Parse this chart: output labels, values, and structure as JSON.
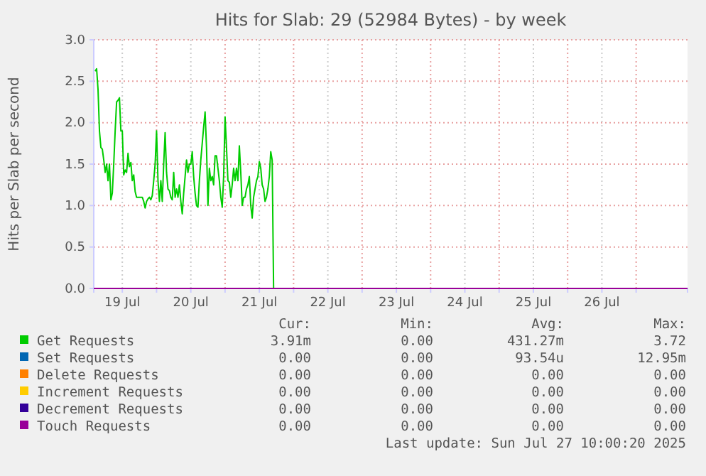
{
  "chart_data": {
    "type": "line",
    "title": "Hits for Slab: 29 (52984 Bytes) - by week",
    "ylabel": "Hits per Slab per second",
    "xlim": [
      "2025-07-19T02:00",
      "2025-07-27T18:00"
    ],
    "xticks": [
      {
        "value": "2025-07-19T12:00",
        "label": "19 Jul"
      },
      {
        "value": "2025-07-20T00:00",
        "label": null
      },
      {
        "value": "2025-07-20T12:00",
        "label": "20 Jul"
      },
      {
        "value": "2025-07-21T00:00",
        "label": null
      },
      {
        "value": "2025-07-21T12:00",
        "label": "21 Jul"
      },
      {
        "value": "2025-07-22T00:00",
        "label": null
      },
      {
        "value": "2025-07-22T12:00",
        "label": "22 Jul"
      },
      {
        "value": "2025-07-23T00:00",
        "label": null
      },
      {
        "value": "2025-07-23T12:00",
        "label": "23 Jul"
      },
      {
        "value": "2025-07-24T00:00",
        "label": null
      },
      {
        "value": "2025-07-24T12:00",
        "label": "24 Jul"
      },
      {
        "value": "2025-07-25T00:00",
        "label": null
      },
      {
        "value": "2025-07-25T12:00",
        "label": "25 Jul"
      },
      {
        "value": "2025-07-26T00:00",
        "label": null
      },
      {
        "value": "2025-07-26T12:00",
        "label": "26 Jul"
      },
      {
        "value": "2025-07-27T00:00",
        "label": null
      }
    ],
    "ylim": [
      0,
      3
    ],
    "yticks": [
      {
        "value": 0,
        "label": "0.0"
      },
      {
        "value": 0.5,
        "label": "0.5"
      },
      {
        "value": 1,
        "label": "1.0"
      },
      {
        "value": 1.5,
        "label": "1.5"
      },
      {
        "value": 2,
        "label": "2.0"
      },
      {
        "value": 2.5,
        "label": "2.5"
      },
      {
        "value": 3,
        "label": "3.0"
      }
    ],
    "grid": true,
    "legend": "bottom",
    "marker": "none",
    "line_style": "solid",
    "series": [
      {
        "name": "Get Requests",
        "color": "#00cc00",
        "x": [
          "2025-07-19T02:30",
          "2025-07-19T03:00",
          "2025-07-19T03:30",
          "2025-07-19T04:00",
          "2025-07-19T04:30",
          "2025-07-19T05:00",
          "2025-07-19T05:30",
          "2025-07-19T06:00",
          "2025-07-19T06:30",
          "2025-07-19T07:00",
          "2025-07-19T07:30",
          "2025-07-19T08:00",
          "2025-07-19T08:30",
          "2025-07-19T09:00",
          "2025-07-19T09:30",
          "2025-07-19T10:00",
          "2025-07-19T10:30",
          "2025-07-19T11:00",
          "2025-07-19T11:30",
          "2025-07-19T12:00",
          "2025-07-19T12:30",
          "2025-07-19T13:00",
          "2025-07-19T13:30",
          "2025-07-19T14:00",
          "2025-07-19T14:30",
          "2025-07-19T15:00",
          "2025-07-19T15:30",
          "2025-07-19T16:00",
          "2025-07-19T16:30",
          "2025-07-19T17:00",
          "2025-07-19T17:30",
          "2025-07-19T18:00",
          "2025-07-19T18:30",
          "2025-07-19T19:00",
          "2025-07-19T19:30",
          "2025-07-19T20:00",
          "2025-07-19T20:30",
          "2025-07-19T21:00",
          "2025-07-19T21:30",
          "2025-07-19T22:00",
          "2025-07-19T22:30",
          "2025-07-19T23:00",
          "2025-07-19T23:30",
          "2025-07-20T00:00",
          "2025-07-20T00:30",
          "2025-07-20T01:00",
          "2025-07-20T01:30",
          "2025-07-20T02:00",
          "2025-07-20T02:30",
          "2025-07-20T03:00",
          "2025-07-20T03:30",
          "2025-07-20T04:00",
          "2025-07-20T04:30",
          "2025-07-20T05:00",
          "2025-07-20T05:30",
          "2025-07-20T06:00",
          "2025-07-20T06:30",
          "2025-07-20T07:00",
          "2025-07-20T07:30",
          "2025-07-20T08:00",
          "2025-07-20T08:30",
          "2025-07-20T09:00",
          "2025-07-20T09:30",
          "2025-07-20T10:00",
          "2025-07-20T10:30",
          "2025-07-20T11:00",
          "2025-07-20T11:30",
          "2025-07-20T12:00",
          "2025-07-20T12:30",
          "2025-07-20T13:00",
          "2025-07-20T13:30",
          "2025-07-20T14:00",
          "2025-07-20T14:30",
          "2025-07-20T15:00",
          "2025-07-20T15:30",
          "2025-07-20T16:00",
          "2025-07-20T16:30",
          "2025-07-20T17:00",
          "2025-07-20T17:30",
          "2025-07-20T18:00",
          "2025-07-20T18:30",
          "2025-07-20T19:00",
          "2025-07-20T19:30",
          "2025-07-20T20:00",
          "2025-07-20T20:30",
          "2025-07-20T21:00",
          "2025-07-20T21:30",
          "2025-07-20T22:00",
          "2025-07-20T22:30",
          "2025-07-20T23:00",
          "2025-07-20T23:30",
          "2025-07-21T00:00",
          "2025-07-21T00:30",
          "2025-07-21T01:00",
          "2025-07-21T01:30",
          "2025-07-21T02:00",
          "2025-07-21T02:30",
          "2025-07-21T03:00",
          "2025-07-21T03:30",
          "2025-07-21T04:00",
          "2025-07-21T04:30",
          "2025-07-21T05:00",
          "2025-07-21T05:30",
          "2025-07-21T06:00",
          "2025-07-21T06:30",
          "2025-07-21T07:00",
          "2025-07-21T07:30",
          "2025-07-21T08:00",
          "2025-07-21T08:30",
          "2025-07-21T09:00",
          "2025-07-21T09:30",
          "2025-07-21T10:00",
          "2025-07-21T10:30",
          "2025-07-21T11:00",
          "2025-07-21T11:30",
          "2025-07-21T12:00",
          "2025-07-21T12:30",
          "2025-07-21T13:00",
          "2025-07-21T13:30",
          "2025-07-21T14:00",
          "2025-07-21T14:30",
          "2025-07-21T15:00",
          "2025-07-21T15:30",
          "2025-07-21T16:00",
          "2025-07-21T16:30",
          "2025-07-21T17:00"
        ],
        "values": [
          2.62,
          2.65,
          2.4,
          1.9,
          1.7,
          1.68,
          1.55,
          1.4,
          1.5,
          1.3,
          1.5,
          1.07,
          1.15,
          1.5,
          1.9,
          2.25,
          2.27,
          2.3,
          1.9,
          1.9,
          1.37,
          1.43,
          1.4,
          1.63,
          1.47,
          1.52,
          1.3,
          1.37,
          1.17,
          1.1,
          1.1,
          1.1,
          1.1,
          1.1,
          1.05,
          0.97,
          1.05,
          1.08,
          1.1,
          1.07,
          1.12,
          1.3,
          1.5,
          1.9,
          1.3,
          1.05,
          1.3,
          1.05,
          1.5,
          1.88,
          1.4,
          1.2,
          1.18,
          1.1,
          1.07,
          1.4,
          1.1,
          1.2,
          1.1,
          1.25,
          1.05,
          0.9,
          1.15,
          1.35,
          1.55,
          1.4,
          1.5,
          1.5,
          1.65,
          1.35,
          1.15,
          1.0,
          0.98,
          1.3,
          1.55,
          1.75,
          1.95,
          2.13,
          1.7,
          1.0,
          1.45,
          1.3,
          1.35,
          1.25,
          1.6,
          1.6,
          1.45,
          1.3,
          1.1,
          0.98,
          1.35,
          2.07,
          1.7,
          1.3,
          1.28,
          1.1,
          1.25,
          1.45,
          1.3,
          1.45,
          1.3,
          1.72,
          1.4,
          1.0,
          1.1,
          1.1,
          1.2,
          1.25,
          1.35,
          1.0,
          0.85,
          1.1,
          1.2,
          1.3,
          1.35,
          1.53,
          1.45,
          1.25,
          1.2,
          1.05,
          1.1,
          1.2,
          1.35,
          1.65,
          1.55,
          0
        ]
      },
      {
        "name": "Set Requests",
        "color": "#0066b3"
      },
      {
        "name": "Delete Requests",
        "color": "#ff8000"
      },
      {
        "name": "Increment Requests",
        "color": "#ffcc00"
      },
      {
        "name": "Decrement Requests",
        "color": "#330099"
      },
      {
        "name": "Touch Requests",
        "color": "#990099",
        "x": [
          "2025-07-19T02:00",
          "2025-07-27T18:00"
        ],
        "values": [
          0,
          0
        ]
      }
    ],
    "annotations": [
      "Cur:",
      "Min:",
      "Avg:",
      "Max:",
      "3.91m",
      "0.00",
      "431.27m",
      "3.72",
      "0.00",
      "0.00",
      "93.54u",
      "12.95m",
      "0.00",
      "0.00",
      "0.00",
      "0.00",
      "0.00",
      "0.00",
      "0.00",
      "0.00",
      "0.00",
      "0.00",
      "0.00",
      "0.00",
      "0.00",
      "0.00",
      "0.00",
      "0.00",
      "Last update: Sun Jul 27 10:00:20 2025"
    ]
  }
}
